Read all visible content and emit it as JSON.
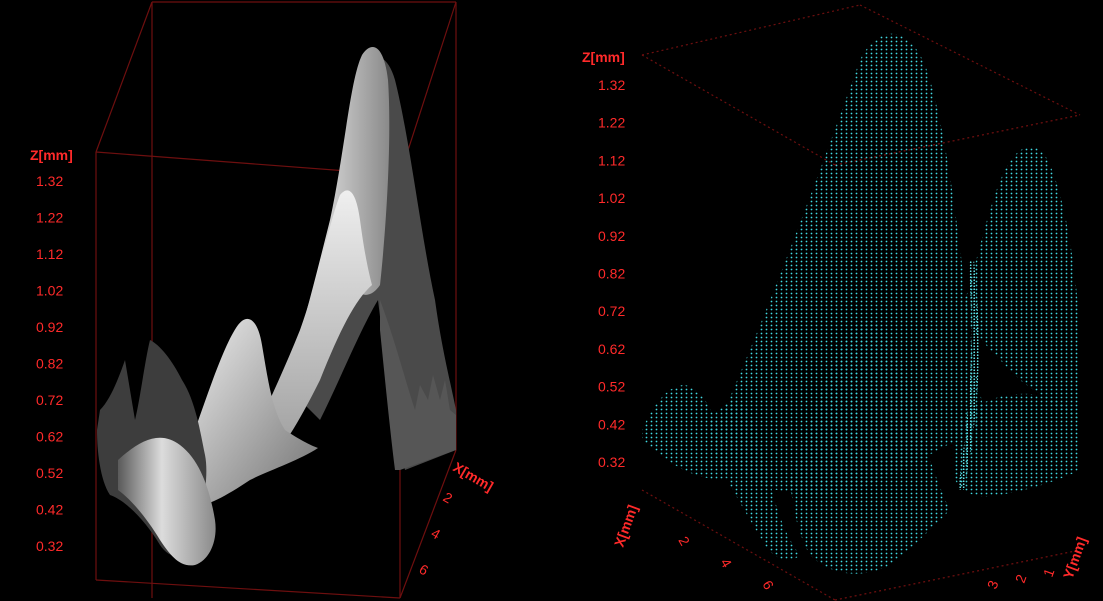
{
  "chart_data": [
    {
      "type": "surface",
      "render_style": "shaded",
      "surface_color": "#d9d9d9",
      "z_axis": {
        "label": "Z[mm]",
        "ticks": [
          "1.32",
          "1.22",
          "1.12",
          "1.02",
          "0.92",
          "0.82",
          "0.72",
          "0.62",
          "0.52",
          "0.42",
          "0.32"
        ]
      },
      "x_axis": {
        "label": "X[mm]",
        "ticks": [
          "2",
          "4",
          "6"
        ]
      },
      "y_axis": {
        "label": "",
        "ticks": []
      },
      "accent_color": "#ff2a2a",
      "box_color": "#7a1010"
    },
    {
      "type": "surface",
      "render_style": "point-cloud",
      "surface_color": "#36d6df",
      "z_axis": {
        "label": "Z[mm]",
        "ticks": [
          "1.32",
          "1.22",
          "1.12",
          "1.02",
          "0.92",
          "0.82",
          "0.72",
          "0.62",
          "0.52",
          "0.42",
          "0.32"
        ]
      },
      "x_axis": {
        "label": "X[mm]",
        "ticks": [
          "2",
          "4",
          "6"
        ]
      },
      "y_axis": {
        "label": "Y[mm]",
        "ticks": [
          "1",
          "2",
          "3"
        ]
      },
      "accent_color": "#ff2a2a",
      "box_color": "#7a1010"
    }
  ]
}
